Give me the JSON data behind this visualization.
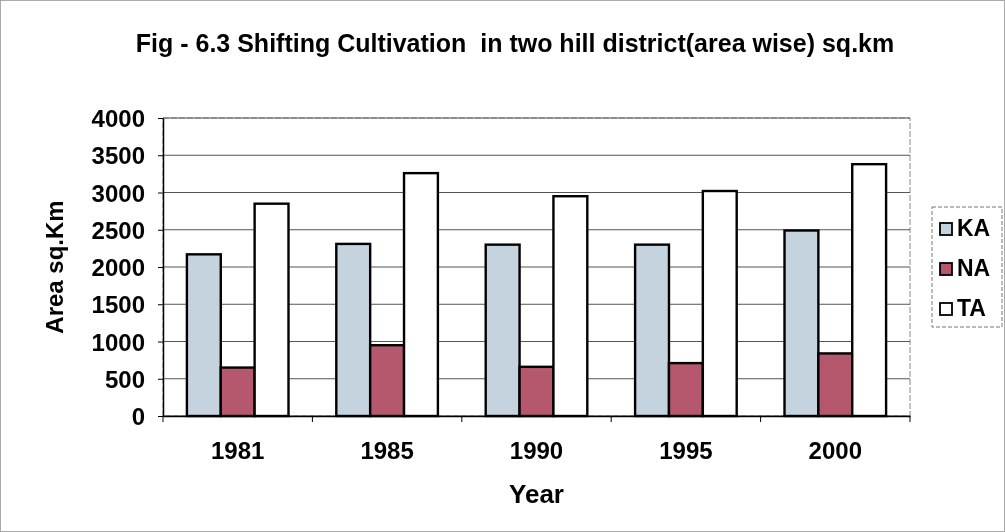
{
  "chart_data": {
    "type": "bar",
    "title": "Fig - 6.3 Shifting Cultivation  in two hill district(area wise) sq.km",
    "xlabel": "Year",
    "ylabel": "Area sq.Km",
    "categories": [
      "1981",
      "1985",
      "1990",
      "1995",
      "2000"
    ],
    "series": [
      {
        "name": "KA",
        "color": "#c5d3de",
        "values": [
          2170,
          2310,
          2300,
          2300,
          2490
        ]
      },
      {
        "name": "NA",
        "color": "#b5586e",
        "values": [
          650,
          950,
          660,
          710,
          840
        ]
      },
      {
        "name": "TA",
        "color": "#ffffff",
        "values": [
          2850,
          3260,
          2950,
          3020,
          3380
        ]
      }
    ],
    "ylim": [
      0,
      4000
    ],
    "yticks": [
      0,
      500,
      1000,
      1500,
      2000,
      2500,
      3000,
      3500,
      4000
    ],
    "grid": "y",
    "legend": "right"
  }
}
